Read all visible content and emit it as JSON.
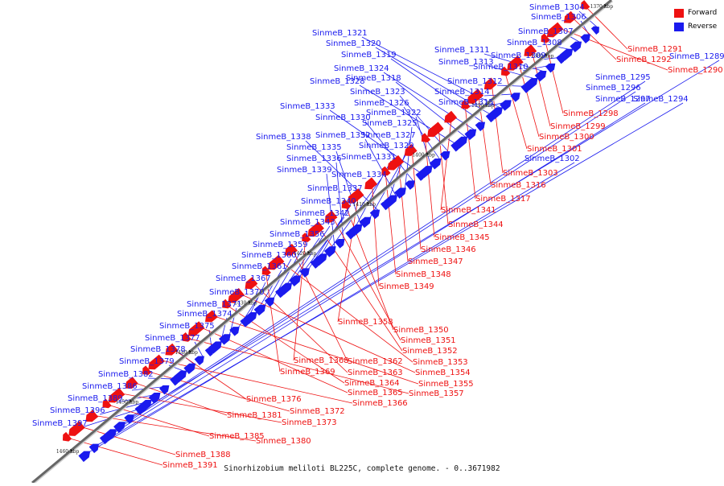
{
  "colors": {
    "forward": "#ee1111",
    "reverse": "#1a1aee",
    "axis": "#666666"
  },
  "legend": {
    "forward_label": "Forward",
    "reverse_label": "Reverse"
  },
  "caption": "Sinorhizobium meliloti BL225C, complete genome. - 0..3671982",
  "axis_ticks": [
    "1370 kbp",
    "1380 kbp",
    "1390 kbp",
    "1400 kbp",
    "1410 kbp",
    "1420 kbp",
    "1430 kbp",
    "1440 kbp",
    "1450 kbp",
    "1460 kbp"
  ],
  "reverse_genes": [
    "SinmeB_1304",
    "SinmeB_1306",
    "SinmeB_1307",
    "SinmeB_1308",
    "SinmeB_1309",
    "SinmeB_1310",
    "SinmeB_1311",
    "SinmeB_1313",
    "SinmeB_1312",
    "SinmeB_1314",
    "SinmeB_1315",
    "SinmeB_1321",
    "SinmeB_1320",
    "SinmeB_1319",
    "SinmeB_1324",
    "SinmeB_1318",
    "SinmeB_1328",
    "SinmeB_1323",
    "SinmeB_1326",
    "SinmeB_1322",
    "SinmeB_1333",
    "SinmeB_1330",
    "SinmeB_1325",
    "SinmeB_1332",
    "SinmeB_1327",
    "SinmeB_1338",
    "SinmeB_1329",
    "SinmeB_1335",
    "SinmeB_1331",
    "SinmeB_1336",
    "SinmeB_1339",
    "SinmeB_1334",
    "SinmeB_1337",
    "SinmeB_1340",
    "SinmeB_1342",
    "SinmeB_1343",
    "SinmeB_1356",
    "SinmeB_1359",
    "SinmeB_1360",
    "SinmeB_1361",
    "SinmeB_1367",
    "SinmeB_1370",
    "SinmeB_1371",
    "SinmeB_1374",
    "SinmeB_1375",
    "SinmeB_1377",
    "SinmeB_1378",
    "SinmeB_1379",
    "SinmeB_1382",
    "SinmeB_1386",
    "SinmeB_1389",
    "SinmeB_1396",
    "SinmeB_1397",
    "SinmeB_1289",
    "SinmeB_1295",
    "SinmeB_1296",
    "SinmeB_1297",
    "SinmeB_1294",
    "SinmeB_1302"
  ],
  "forward_genes": [
    "SinmeB_1291",
    "SinmeB_1292",
    "SinmeB_1290",
    "SinmeB_1298",
    "SinmeB_1299",
    "SinmeB_1300",
    "SinmeB_1301",
    "SinmeB_1303",
    "SinmeB_1316",
    "SinmeB_1317",
    "SinmeB_1341",
    "SinmeB_1344",
    "SinmeB_1345",
    "SinmeB_1346",
    "SinmeB_1347",
    "SinmeB_1348",
    "SinmeB_1349",
    "SinmeB_1358",
    "SinmeB_1350",
    "SinmeB_1351",
    "SinmeB_1352",
    "SinmeB_1368",
    "SinmeB_1362",
    "SinmeB_1353",
    "SinmeB_1369",
    "SinmeB_1363",
    "SinmeB_1354",
    "SinmeB_1364",
    "SinmeB_1355",
    "SinmeB_1365",
    "SinmeB_1357",
    "SinmeB_1376",
    "SinmeB_1366",
    "SinmeB_1372",
    "SinmeB_1381",
    "SinmeB_1373",
    "SinmeB_1385",
    "SinmeB_1380",
    "SinmeB_1388",
    "SinmeB_1391"
  ]
}
